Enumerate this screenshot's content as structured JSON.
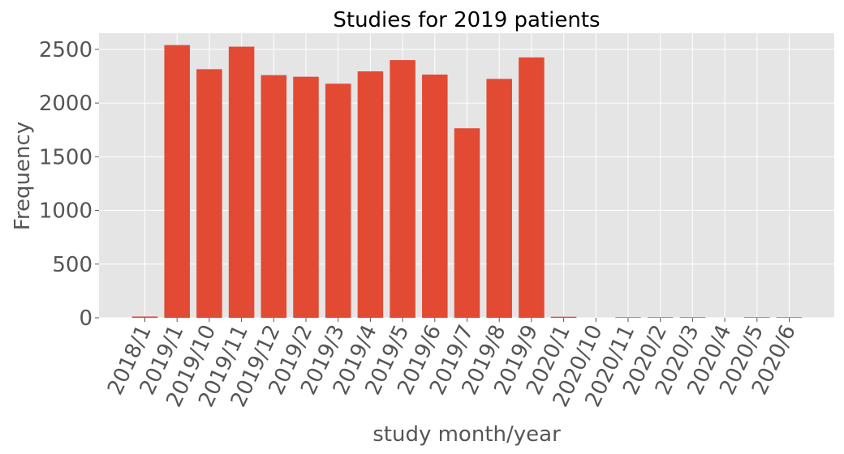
{
  "colors": {
    "bar": "#E24A33",
    "plot_background": "#E5E5E5",
    "grid": "#FFFFFF",
    "tick_text": "#555555"
  },
  "chart_data": {
    "type": "bar",
    "title": "Studies for 2019 patients",
    "xlabel": "study month/year",
    "ylabel": "Frequency",
    "categories": [
      "2018/1",
      "2019/1",
      "2019/10",
      "2019/11",
      "2019/12",
      "2019/2",
      "2019/3",
      "2019/4",
      "2019/5",
      "2019/6",
      "2019/7",
      "2019/8",
      "2019/9",
      "2020/1",
      "2020/10",
      "2020/11",
      "2020/2",
      "2020/3",
      "2020/4",
      "2020/5",
      "2020/6"
    ],
    "values": [
      12,
      2540,
      2315,
      2525,
      2260,
      2245,
      2180,
      2295,
      2400,
      2265,
      1765,
      2225,
      2425,
      10,
      0,
      5,
      5,
      5,
      0,
      5,
      5
    ],
    "yticks": [
      0,
      500,
      1000,
      1500,
      2000,
      2500
    ],
    "ylim": [
      0,
      2650
    ],
    "grid": true,
    "style": "ggplot"
  }
}
